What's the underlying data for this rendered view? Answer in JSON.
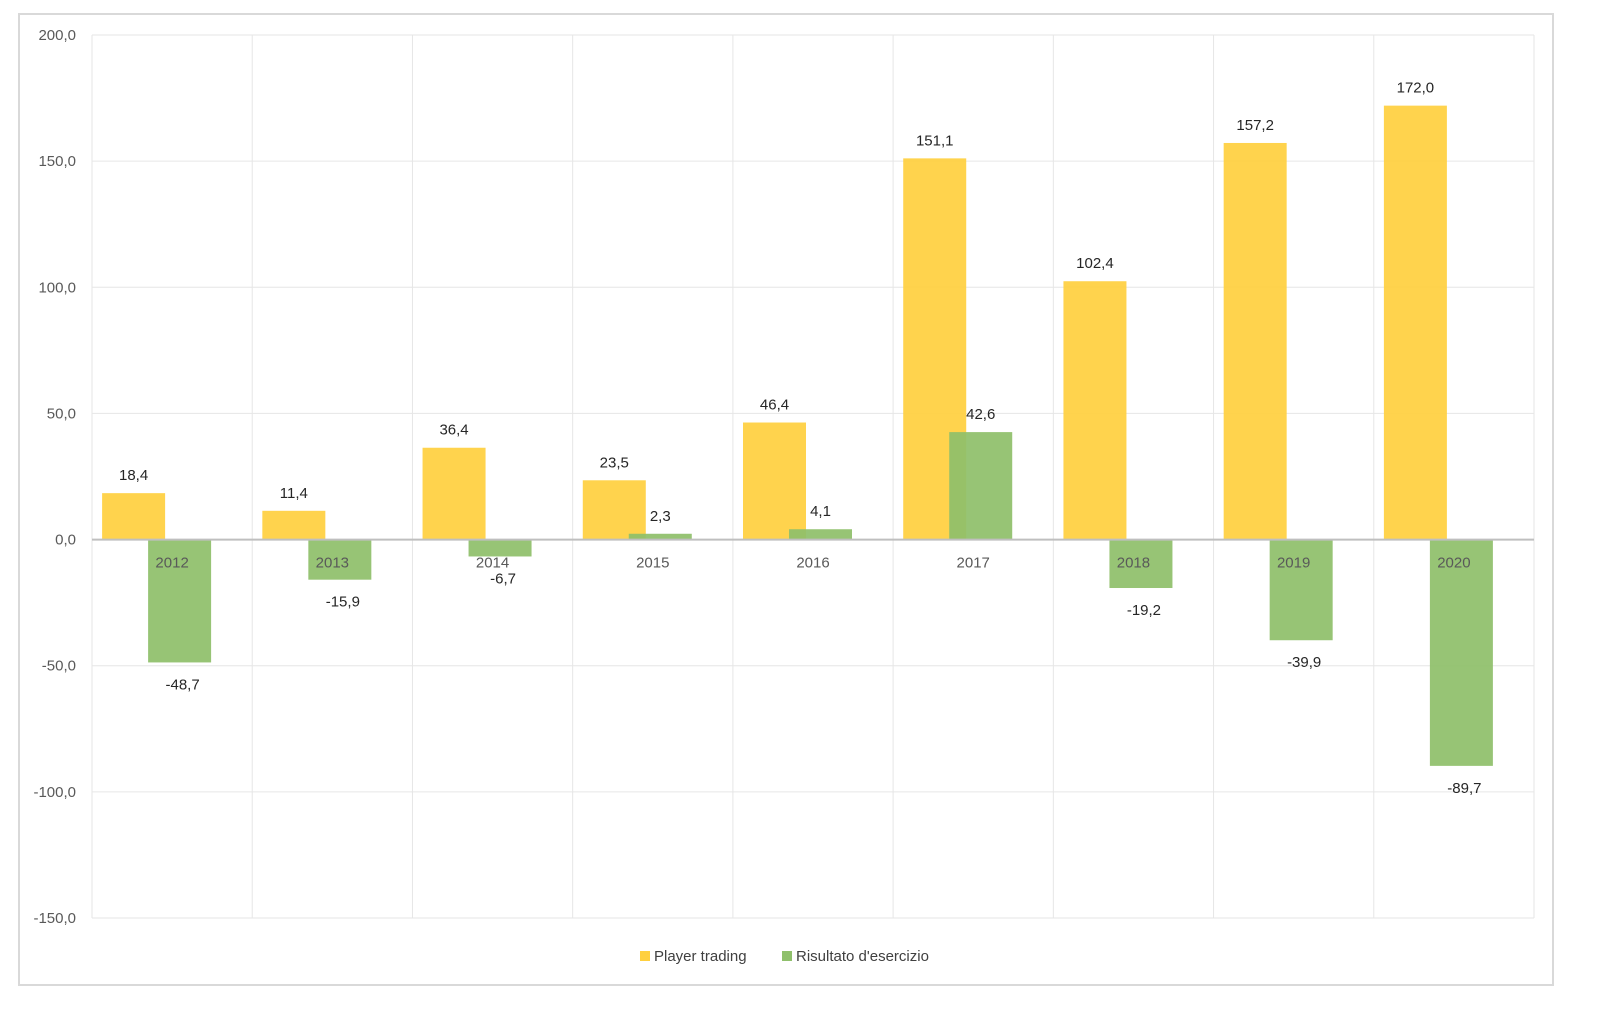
{
  "chart_data": {
    "type": "bar",
    "title": "",
    "xlabel": "",
    "ylabel": "",
    "categories": [
      "2012",
      "2013",
      "2014",
      "2015",
      "2016",
      "2017",
      "2018",
      "2019",
      "2020"
    ],
    "series": [
      {
        "name": "Player trading",
        "color": "#ffd03f",
        "values": [
          18.4,
          11.4,
          36.4,
          23.5,
          46.4,
          151.1,
          102.4,
          157.2,
          172.0
        ],
        "labels": [
          "18,4",
          "11,4",
          "36,4",
          "23,5",
          "46,4",
          "151,1",
          "102,4",
          "157,2",
          "172,0"
        ]
      },
      {
        "name": "Risultato d'esercizio",
        "color": "#8fc06b",
        "values": [
          -48.7,
          -15.9,
          -6.7,
          2.3,
          4.1,
          42.6,
          -19.2,
          -39.9,
          -89.7
        ],
        "labels": [
          "-48,7",
          "-15,9",
          "-6,7",
          "2,3",
          "4,1",
          "42,6",
          "-19,2",
          "-39,9",
          "-89,7"
        ]
      }
    ],
    "ylim": [
      -150,
      200
    ],
    "yticks": [
      200,
      150,
      100,
      50,
      0,
      -50,
      -100,
      -150
    ],
    "ytick_labels": [
      "200,0",
      "150,0",
      "100,0",
      "50,0",
      "0,0",
      "-50,0",
      "-100,0",
      "-150,0"
    ],
    "grid": true,
    "legend_position": "bottom"
  }
}
